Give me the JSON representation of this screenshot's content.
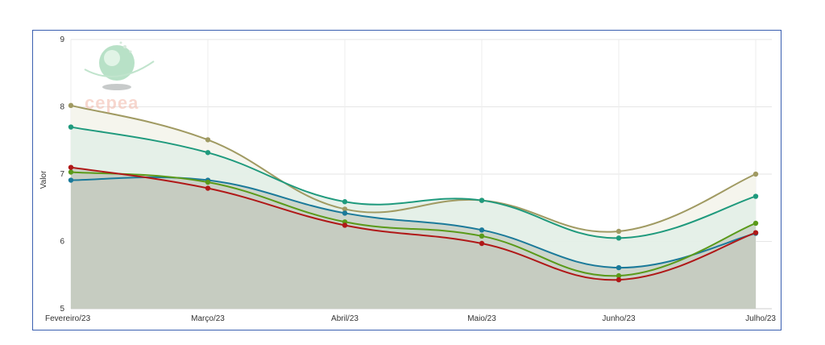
{
  "chart_data": {
    "type": "area",
    "categories": [
      "Fevereiro/23",
      "Março/23",
      "Abril/23",
      "Maio/23",
      "Junho/23",
      "Julho/23"
    ],
    "ylabel": "Valor",
    "xlabel": "",
    "ylim": [
      5,
      9
    ],
    "yticks": [
      5,
      6,
      7,
      8,
      9
    ],
    "grid": true,
    "series": [
      {
        "values": [
          8.02,
          7.51,
          6.48,
          6.61,
          6.15,
          7.0
        ],
        "color": "#a09a62",
        "fill": "#f3f3ea"
      },
      {
        "values": [
          7.7,
          7.32,
          6.59,
          6.61,
          6.05,
          6.67
        ],
        "color": "#1f9a7d",
        "fill": "#e2efe6"
      },
      {
        "values": [
          6.91,
          6.91,
          6.42,
          6.17,
          5.61,
          6.12
        ],
        "color": "#1b7a9a",
        "fill": "#c9d1c7"
      },
      {
        "values": [
          7.03,
          6.88,
          6.29,
          6.08,
          5.49,
          6.27
        ],
        "color": "#5a9a1a",
        "fill": "#c9d1c7"
      },
      {
        "values": [
          7.1,
          6.79,
          6.24,
          5.97,
          5.43,
          6.13
        ],
        "color": "#b01818",
        "fill": "#c5cbc0"
      }
    ]
  },
  "logo": {
    "text": "cepea",
    "icon": "globe-logo-icon"
  }
}
